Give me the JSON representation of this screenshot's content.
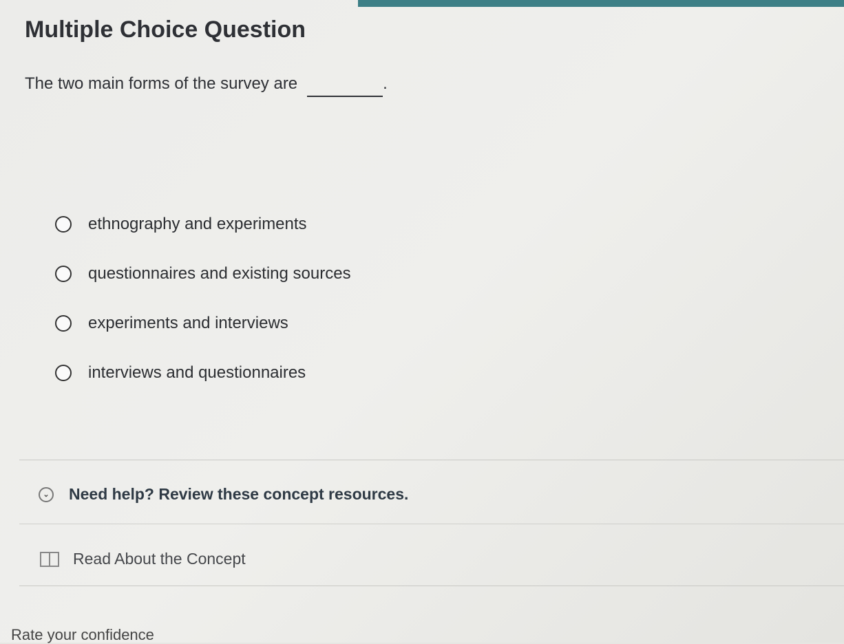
{
  "question": {
    "heading": "Multiple Choice Question",
    "prompt": "The two main forms of the survey are",
    "prompt_end": ".",
    "options": [
      {
        "label": "ethnography and experiments",
        "selected": false
      },
      {
        "label": "questionnaires and existing sources",
        "selected": false
      },
      {
        "label": "experiments and interviews",
        "selected": false
      },
      {
        "label": "interviews and questionnaires",
        "selected": false
      }
    ]
  },
  "help": {
    "title": "Need help? Review these concept resources.",
    "resource_label": "Read About the Concept"
  },
  "confidence": {
    "label": "Rate your confidence"
  },
  "colors": {
    "topbar": "#3d7f86"
  }
}
